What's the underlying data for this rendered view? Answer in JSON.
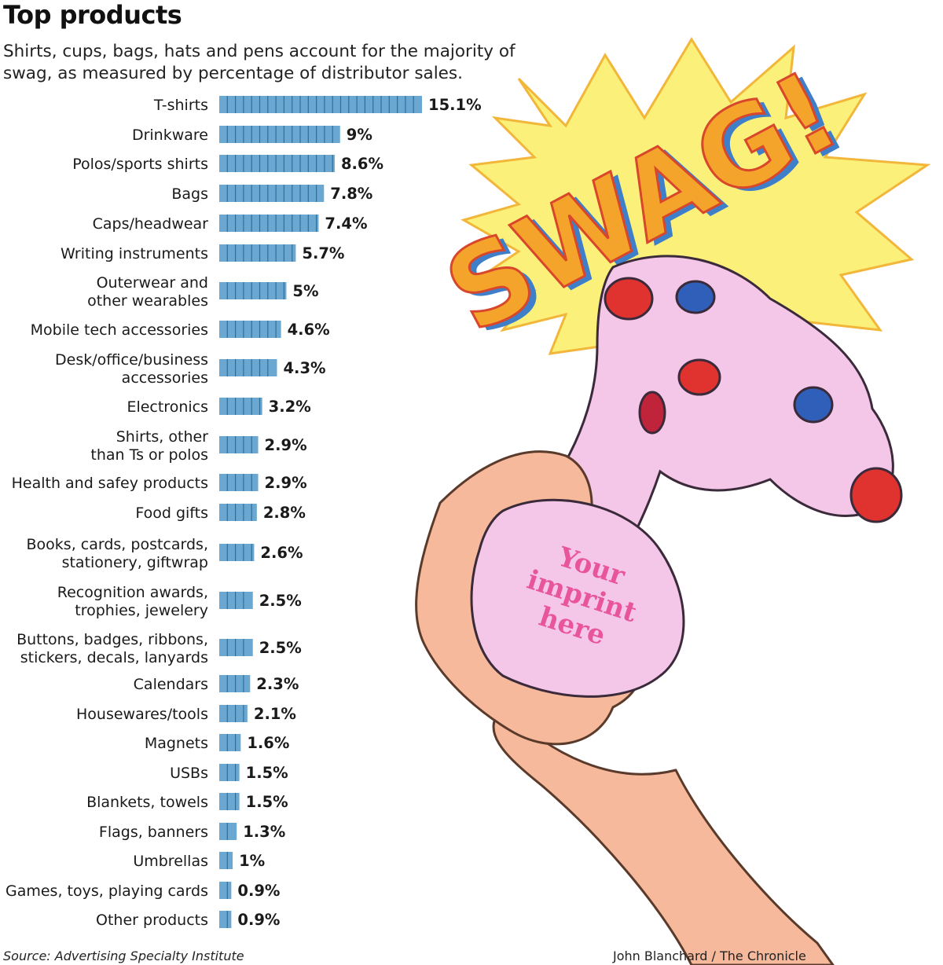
{
  "header": {
    "title": "Top products",
    "subtitle": "Shirts, cups, bags, hats and pens account for the majority of swag, as measured by percentage of distributor sales."
  },
  "chart_data": {
    "type": "bar",
    "orientation": "horizontal",
    "unit": "%",
    "title": "Top products",
    "subtitle": "Shirts, cups, bags, hats and pens account for the majority of swag, as measured by percentage of distributor sales.",
    "categories": [
      [
        "T-shirts"
      ],
      [
        "Drinkware"
      ],
      [
        "Polos/sports shirts"
      ],
      [
        "Bags"
      ],
      [
        "Caps/headwear"
      ],
      [
        "Writing instruments"
      ],
      [
        "Outerwear and",
        "other wearables"
      ],
      [
        "Mobile tech accessories"
      ],
      [
        "Desk/office/business",
        "accessories"
      ],
      [
        "Electronics"
      ],
      [
        "Shirts, other",
        "than Ts or polos"
      ],
      [
        "Health and safey products"
      ],
      [
        "Food gifts"
      ],
      [
        "Books, cards, postcards,",
        "stationery, giftwrap"
      ],
      [
        "Recognition awards,",
        "trophies, jewelery"
      ],
      [
        "Buttons, badges, ribbons,",
        "stickers, decals, lanyards"
      ],
      [
        "Calendars"
      ],
      [
        "Housewares/tools"
      ],
      [
        "Magnets"
      ],
      [
        "USBs"
      ],
      [
        "Blankets, towels"
      ],
      [
        "Flags, banners"
      ],
      [
        "Umbrellas"
      ],
      [
        "Games, toys, playing cards"
      ],
      [
        "Other products"
      ]
    ],
    "values": [
      15.1,
      9,
      8.6,
      7.8,
      7.4,
      5.7,
      5,
      4.6,
      4.3,
      3.2,
      2.9,
      2.9,
      2.8,
      2.6,
      2.5,
      2.5,
      2.3,
      2.1,
      1.6,
      1.5,
      1.5,
      1.3,
      1,
      0.9,
      0.9
    ],
    "value_labels": [
      "15.1%",
      "9%",
      "8.6%",
      "7.8%",
      "7.4%",
      "5.7%",
      "5%",
      "4.6%",
      "4.3%",
      "3.2%",
      "2.9%",
      "2.9%",
      "2.8%",
      "2.6%",
      "2.5%",
      "2.5%",
      "2.3%",
      "2.1%",
      "1.6%",
      "1.5%",
      "1.5%",
      "1.3%",
      "1%",
      "0.9%",
      "0.9%"
    ],
    "xlabel": "",
    "ylabel": "",
    "xlim": [
      0,
      15.1
    ],
    "grid": false,
    "bar_color": "#6aa8d2",
    "segment_divider_color": "#2e6f9a"
  },
  "illustration": {
    "description_icon": "hand-squeezing-stress-toy-icon",
    "burst_text": "SWAG!",
    "imprint_text": [
      "Your",
      "imprint",
      "here"
    ]
  },
  "footer": {
    "source": "Source: Advertising Specialty Institute",
    "credit": "John Blanchard / The Chronicle"
  },
  "colors": {
    "burst_fill": "#fbf17a",
    "swag_fill": "#f5a42b",
    "swag_shadow": "#3f7fc9",
    "toy_fill": "#f4c6e8",
    "skin": "#f7b99c",
    "knob_red": "#e0332f",
    "knob_blue": "#2f5fb8",
    "imprint_text": "#e8559a"
  }
}
